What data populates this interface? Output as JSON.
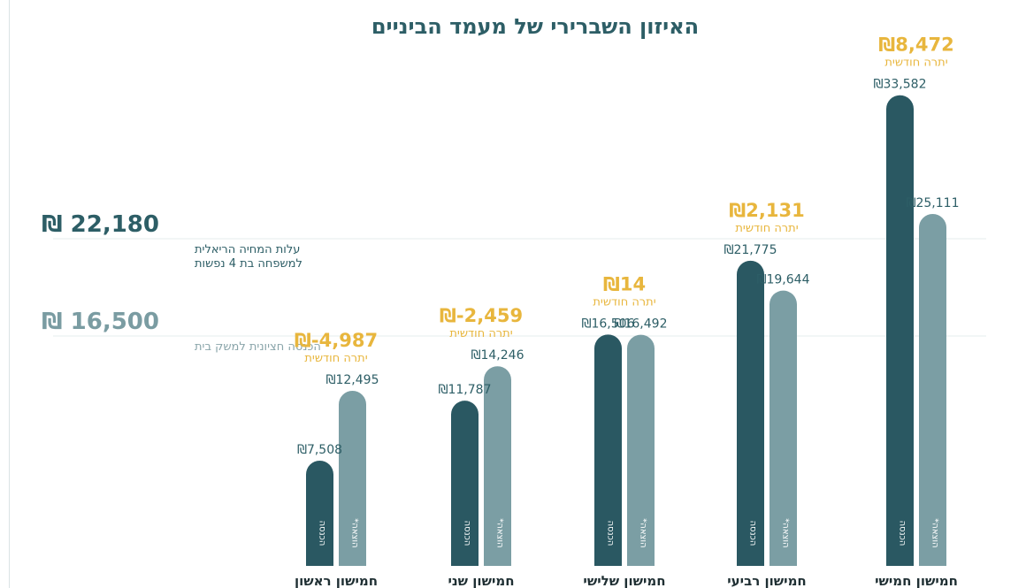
{
  "title": "האיזון השברירי של מעמד הביניים",
  "reference_lines": [
    {
      "value_text": "₪ 22,180",
      "description": [
        "עלות המחיה הריאלית",
        "למשפחה בת 4 נפשות"
      ]
    },
    {
      "value_text": "₪ 16,500",
      "description": [
        "הכנסה חציונית למשק בית"
      ]
    }
  ],
  "chart_data": {
    "type": "bar",
    "title": "האיזון השברירי של מעמד הביניים",
    "categories": [
      "חמישון ראשון",
      "חמישון שני",
      "חמישון שלישי",
      "חמישון רביעי",
      "חמישון חמישי"
    ],
    "series": [
      {
        "name": "הכנסה",
        "values": [
          7508,
          11787,
          16506,
          21775,
          33582
        ],
        "color": "#2a5862"
      },
      {
        "name": "הוצאה",
        "values": [
          12495,
          14246,
          16492,
          19644,
          25111
        ],
        "color": "#7b9ea4"
      }
    ],
    "value_labels": {
      "income": [
        "₪7,508",
        "₪11,787",
        "₪16,506",
        "₪21,775",
        "₪33,582"
      ],
      "expense": [
        "₪12,495",
        "₪14,246",
        "₪16,492",
        "₪19,644",
        "₪25,111"
      ]
    },
    "monthly_surplus": [
      -4987,
      -2459,
      14,
      2131,
      8472
    ],
    "monthly_surplus_labels": [
      "₪-4,987",
      "₪-2,459",
      "₪14",
      "₪2,131",
      "₪8,472"
    ],
    "surplus_caption": "יתרה חודשית",
    "bar_captions": {
      "income": "הכנסה",
      "expense": "הוצאה*"
    },
    "reference_values": [
      22180,
      16500
    ],
    "gridlines": true,
    "legend": "none"
  }
}
